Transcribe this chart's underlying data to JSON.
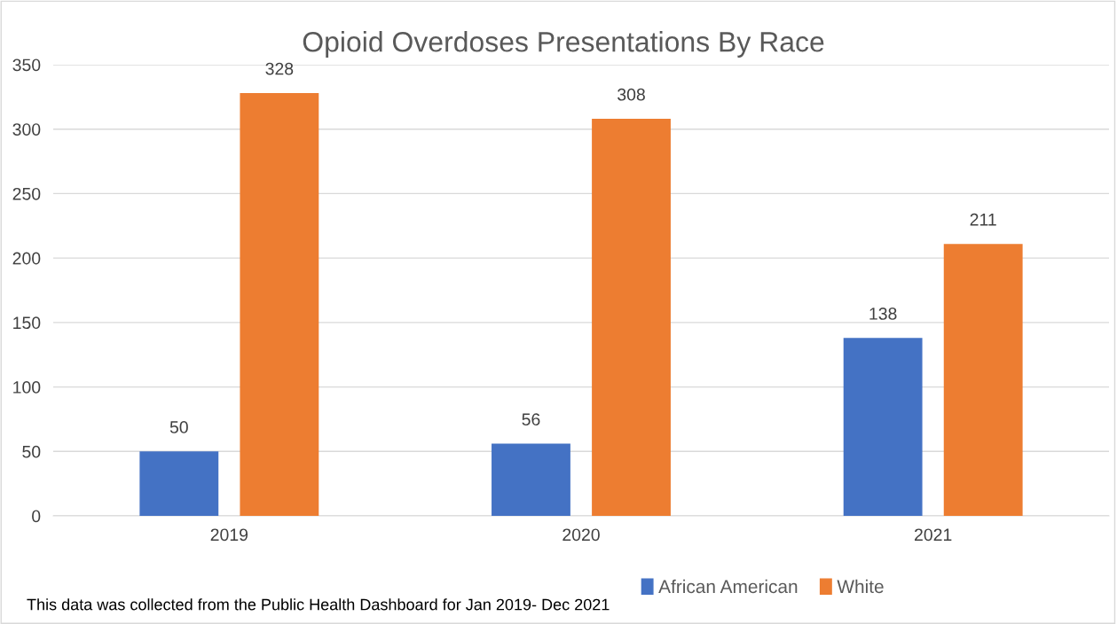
{
  "chart_data": {
    "type": "bar",
    "title": "Opioid Overdoses Presentations By Race",
    "categories": [
      "2019",
      "2020",
      "2021"
    ],
    "series": [
      {
        "name": "African American",
        "color": "#4472c4",
        "values": [
          50,
          56,
          138
        ]
      },
      {
        "name": "White",
        "color": "#ed7d31",
        "values": [
          328,
          308,
          211
        ]
      }
    ],
    "ylim": [
      0,
      350
    ],
    "yticks": [
      0,
      50,
      100,
      150,
      200,
      250,
      300,
      350
    ],
    "grid": "y",
    "legend": "bottom",
    "data_labels": true,
    "annotations": [
      "This data was collected from the Public Health Dashboard for Jan 2019- Dec 2021"
    ]
  }
}
